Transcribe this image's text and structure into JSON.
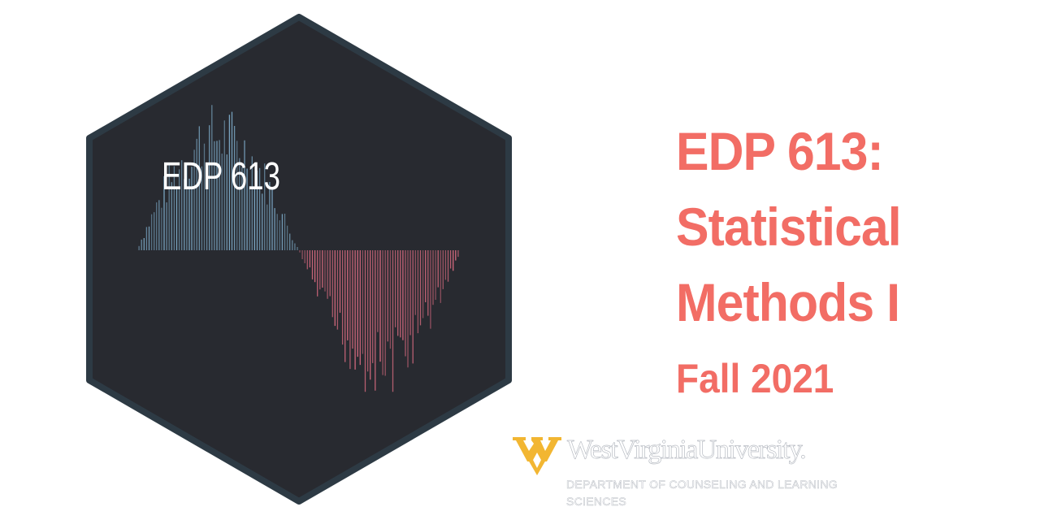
{
  "badge": {
    "label": "EDP 613",
    "fill": "#282a30",
    "border": "#2d3a44",
    "negative_color": "#d96b80",
    "positive_color": "#7aa6c2"
  },
  "title": {
    "line1": "EDP 613:",
    "line2": "Statistical",
    "line3": "Methods I",
    "term": "Fall 2021",
    "color": "#f26d65"
  },
  "university": {
    "name": "WestVirginiaUniversity.",
    "department": "DEPARTMENT OF COUNSELING AND LEARNING SCIENCES",
    "logo_color": "#f2b632",
    "logo_icon": "flying-wv-icon"
  }
}
